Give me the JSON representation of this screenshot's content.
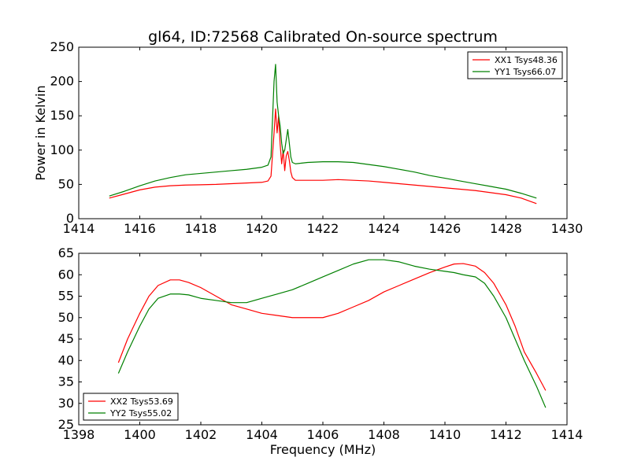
{
  "chart_data": [
    {
      "type": "line",
      "title": "gl64, ID:72568 Calibrated On-source spectrum",
      "xlabel": "",
      "ylabel": "Power in Kelvin",
      "xlim": [
        1414,
        1430
      ],
      "ylim": [
        0,
        250
      ],
      "xticks": [
        1414,
        1416,
        1418,
        1420,
        1422,
        1424,
        1426,
        1428,
        1430
      ],
      "yticks": [
        0,
        50,
        100,
        150,
        200,
        250
      ],
      "grid": false,
      "legend": "top-right",
      "series": [
        {
          "name": "XX1 Tsys48.36",
          "color": "#ff0000",
          "x": [
            1415.0,
            1415.5,
            1416.0,
            1416.5,
            1417.0,
            1417.5,
            1418.0,
            1418.5,
            1419.0,
            1419.5,
            1420.0,
            1420.2,
            1420.3,
            1420.4,
            1420.45,
            1420.5,
            1420.55,
            1420.6,
            1420.65,
            1420.7,
            1420.75,
            1420.8,
            1420.85,
            1420.9,
            1420.95,
            1421.0,
            1421.1,
            1421.3,
            1421.5,
            1422.0,
            1422.5,
            1423.0,
            1423.5,
            1424.0,
            1424.5,
            1425.0,
            1425.5,
            1426.0,
            1426.5,
            1427.0,
            1427.5,
            1428.0,
            1428.5,
            1429.0
          ],
          "y": [
            30,
            36,
            42,
            46,
            48,
            49,
            49.5,
            50,
            51,
            52,
            53,
            55,
            62,
            125,
            160,
            125,
            150,
            108,
            80,
            100,
            70,
            92,
            98,
            85,
            68,
            60,
            56,
            56,
            56,
            56,
            57,
            56,
            55,
            53,
            51,
            49,
            47,
            45,
            43,
            41,
            38,
            35,
            30,
            22
          ]
        },
        {
          "name": "YY1 Tsys66.07",
          "color": "#008000",
          "x": [
            1415.0,
            1415.5,
            1416.0,
            1416.5,
            1417.0,
            1417.5,
            1418.0,
            1418.5,
            1419.0,
            1419.5,
            1420.0,
            1420.2,
            1420.3,
            1420.4,
            1420.45,
            1420.5,
            1420.55,
            1420.6,
            1420.65,
            1420.7,
            1420.75,
            1420.8,
            1420.85,
            1420.9,
            1420.95,
            1421.0,
            1421.1,
            1421.3,
            1421.5,
            1422.0,
            1422.5,
            1423.0,
            1423.5,
            1424.0,
            1424.5,
            1425.0,
            1425.5,
            1426.0,
            1426.5,
            1427.0,
            1427.5,
            1428.0,
            1428.5,
            1429.0
          ],
          "y": [
            33,
            40,
            48,
            55,
            60,
            64,
            66,
            68,
            70,
            72,
            75,
            78,
            90,
            200,
            225,
            170,
            150,
            135,
            110,
            95,
            100,
            115,
            130,
            110,
            90,
            82,
            80,
            81,
            82,
            83,
            83,
            82,
            79,
            76,
            72,
            68,
            63,
            59,
            55,
            51,
            47,
            43,
            37,
            30
          ]
        }
      ]
    },
    {
      "type": "line",
      "title": "",
      "xlabel": "Frequency (MHz)",
      "ylabel": "",
      "xlim": [
        1398,
        1414
      ],
      "ylim": [
        25,
        65
      ],
      "xticks": [
        1398,
        1400,
        1402,
        1404,
        1406,
        1408,
        1410,
        1412,
        1414
      ],
      "yticks": [
        25,
        30,
        35,
        40,
        45,
        50,
        55,
        60,
        65
      ],
      "grid": false,
      "legend": "bottom-left",
      "series": [
        {
          "name": "XX2 Tsys53.69",
          "color": "#ff0000",
          "x": [
            1399.3,
            1399.6,
            1400.0,
            1400.3,
            1400.6,
            1401.0,
            1401.3,
            1401.6,
            1402.0,
            1402.5,
            1403.0,
            1403.5,
            1404.0,
            1404.5,
            1405.0,
            1405.5,
            1406.0,
            1406.5,
            1407.0,
            1407.5,
            1408.0,
            1408.5,
            1409.0,
            1409.5,
            1410.0,
            1410.3,
            1410.6,
            1411.0,
            1411.3,
            1411.6,
            1412.0,
            1412.3,
            1412.6,
            1413.0,
            1413.3
          ],
          "y": [
            39.5,
            45,
            51,
            55,
            57.5,
            58.8,
            58.8,
            58.2,
            57,
            55,
            53,
            52,
            51,
            50.5,
            50,
            50,
            50,
            51,
            52.5,
            54,
            56,
            57.5,
            59,
            60.5,
            61.8,
            62.5,
            62.6,
            62,
            60.5,
            58,
            53,
            48,
            42,
            37,
            33
          ]
        },
        {
          "name": "YY2 Tsys55.02",
          "color": "#008000",
          "x": [
            1399.3,
            1399.6,
            1400.0,
            1400.3,
            1400.6,
            1401.0,
            1401.3,
            1401.6,
            1402.0,
            1402.5,
            1403.0,
            1403.5,
            1404.0,
            1404.5,
            1405.0,
            1405.5,
            1406.0,
            1406.5,
            1407.0,
            1407.5,
            1408.0,
            1408.5,
            1409.0,
            1409.5,
            1410.0,
            1410.3,
            1410.6,
            1411.0,
            1411.3,
            1411.6,
            1412.0,
            1412.3,
            1412.6,
            1413.0,
            1413.3
          ],
          "y": [
            37,
            42,
            48,
            52,
            54.5,
            55.5,
            55.5,
            55.3,
            54.5,
            54,
            53.5,
            53.5,
            54.5,
            55.5,
            56.5,
            58,
            59.5,
            61,
            62.5,
            63.5,
            63.5,
            63,
            62,
            61.3,
            60.8,
            60.5,
            60,
            59.5,
            58,
            55,
            50,
            45,
            40,
            34,
            29
          ]
        }
      ]
    }
  ]
}
